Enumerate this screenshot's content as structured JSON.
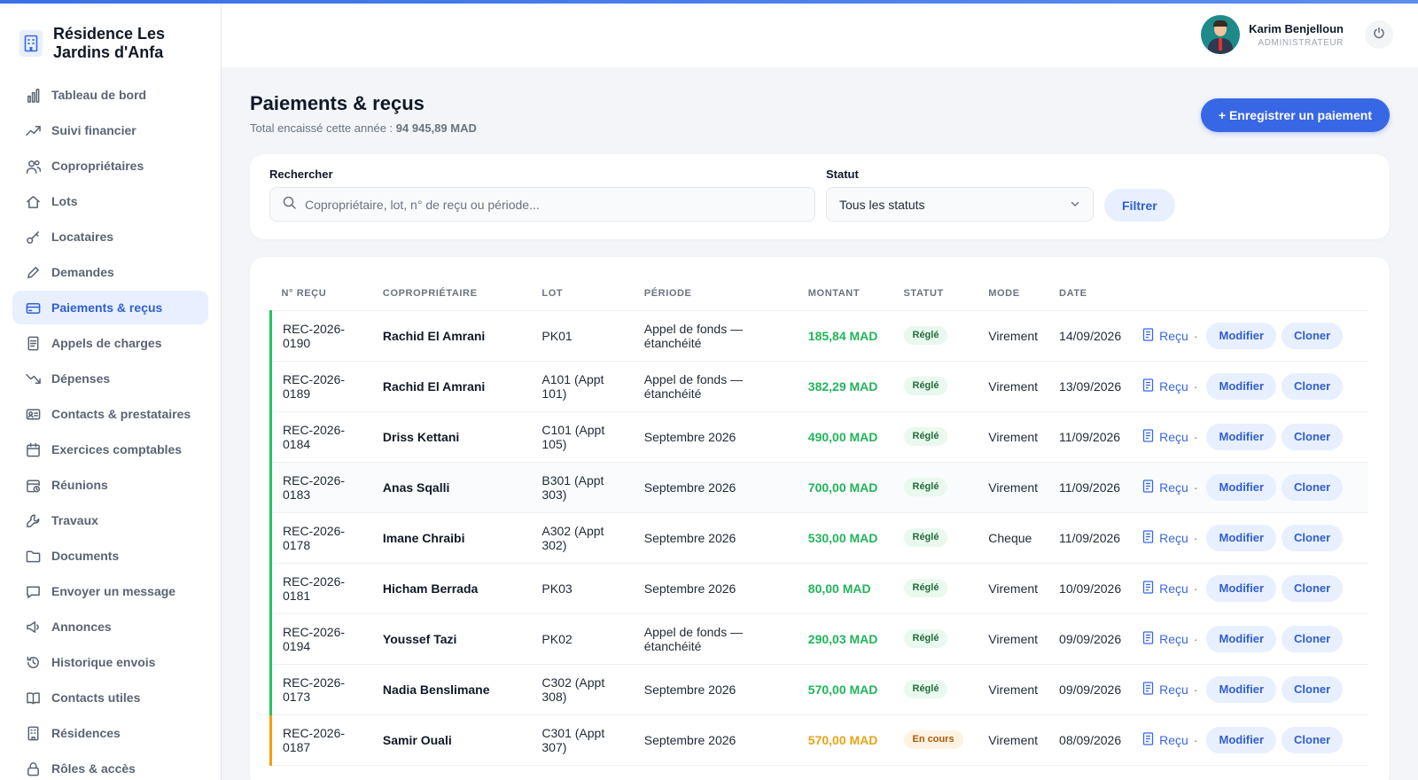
{
  "app": {
    "title": "Résidence Les Jardins d'Anfa"
  },
  "sidebar": {
    "items": [
      {
        "label": "Tableau de bord",
        "icon": "bar-chart-icon"
      },
      {
        "label": "Suivi financier",
        "icon": "trending-up-icon"
      },
      {
        "label": "Copropriétaires",
        "icon": "users-icon"
      },
      {
        "label": "Lots",
        "icon": "home-icon"
      },
      {
        "label": "Locataires",
        "icon": "key-icon"
      },
      {
        "label": "Demandes",
        "icon": "pencil-icon"
      },
      {
        "label": "Paiements & reçus",
        "icon": "credit-card-icon",
        "active": true
      },
      {
        "label": "Appels de charges",
        "icon": "document-icon"
      },
      {
        "label": "Dépenses",
        "icon": "trending-down-icon"
      },
      {
        "label": "Contacts & prestataires",
        "icon": "contact-card-icon"
      },
      {
        "label": "Exercices comptables",
        "icon": "calendar-icon"
      },
      {
        "label": "Réunions",
        "icon": "calendar-clock-icon"
      },
      {
        "label": "Travaux",
        "icon": "wrench-icon"
      },
      {
        "label": "Documents",
        "icon": "folder-icon"
      },
      {
        "label": "Envoyer un message",
        "icon": "message-icon"
      },
      {
        "label": "Annonces",
        "icon": "megaphone-icon"
      },
      {
        "label": "Historique envois",
        "icon": "history-icon"
      },
      {
        "label": "Contacts utiles",
        "icon": "book-icon"
      },
      {
        "label": "Résidences",
        "icon": "building-icon"
      },
      {
        "label": "Rôles & accès",
        "icon": "lock-icon"
      }
    ]
  },
  "header": {
    "user_name": "Karim Benjelloun",
    "user_role": "ADMINISTRATEUR"
  },
  "page": {
    "title": "Paiements & reçus",
    "subtitle_prefix": "Total encaissé cette année :",
    "total": "94 945,89 MAD",
    "primary_button": "+ Enregistrer un paiement"
  },
  "filters": {
    "search_label": "Rechercher",
    "search_placeholder": "Copropriétaire, lot, n° de reçu ou période...",
    "status_label": "Statut",
    "status_value": "Tous les statuts",
    "filter_button": "Filtrer"
  },
  "table": {
    "columns": [
      "N° REÇU",
      "COPROPRIÉTAIRE",
      "LOT",
      "PÉRIODE",
      "MONTANT",
      "STATUT",
      "MODE",
      "DATE"
    ],
    "receipt_label": "Reçu",
    "separator": "·",
    "edit_label": "Modifier",
    "clone_label": "Cloner",
    "rows": [
      {
        "receipt": "REC-2026-0190",
        "owner": "Rachid El Amrani",
        "lot": "PK01",
        "period": "Appel de fonds — étanchéité",
        "amount": "185,84 MAD",
        "status": "Réglé",
        "mode": "Virement",
        "date": "14/09/2026"
      },
      {
        "receipt": "REC-2026-0189",
        "owner": "Rachid El Amrani",
        "lot": "A101 (Appt 101)",
        "period": "Appel de fonds — étanchéité",
        "amount": "382,29 MAD",
        "status": "Réglé",
        "mode": "Virement",
        "date": "13/09/2026"
      },
      {
        "receipt": "REC-2026-0184",
        "owner": "Driss Kettani",
        "lot": "C101 (Appt 105)",
        "period": "Septembre 2026",
        "amount": "490,00 MAD",
        "status": "Réglé",
        "mode": "Virement",
        "date": "11/09/2026"
      },
      {
        "receipt": "REC-2026-0183",
        "owner": "Anas Sqalli",
        "lot": "B301 (Appt 303)",
        "period": "Septembre 2026",
        "amount": "700,00 MAD",
        "status": "Réglé",
        "mode": "Virement",
        "date": "11/09/2026"
      },
      {
        "receipt": "REC-2026-0178",
        "owner": "Imane Chraibi",
        "lot": "A302 (Appt 302)",
        "period": "Septembre 2026",
        "amount": "530,00 MAD",
        "status": "Réglé",
        "mode": "Cheque",
        "date": "11/09/2026"
      },
      {
        "receipt": "REC-2026-0181",
        "owner": "Hicham Berrada",
        "lot": "PK03",
        "period": "Septembre 2026",
        "amount": "80,00 MAD",
        "status": "Réglé",
        "mode": "Virement",
        "date": "10/09/2026"
      },
      {
        "receipt": "REC-2026-0194",
        "owner": "Youssef Tazi",
        "lot": "PK02",
        "period": "Appel de fonds — étanchéité",
        "amount": "290,03 MAD",
        "status": "Réglé",
        "mode": "Virement",
        "date": "09/09/2026"
      },
      {
        "receipt": "REC-2026-0173",
        "owner": "Nadia Benslimane",
        "lot": "C302 (Appt 308)",
        "period": "Septembre 2026",
        "amount": "570,00 MAD",
        "status": "Réglé",
        "mode": "Virement",
        "date": "09/09/2026"
      },
      {
        "receipt": "REC-2026-0187",
        "owner": "Samir Ouali",
        "lot": "C301 (Appt 307)",
        "period": "Septembre 2026",
        "amount": "570,00 MAD",
        "status": "En cours",
        "mode": "Virement",
        "date": "08/09/2026"
      }
    ]
  },
  "colors": {
    "accent": "#3867e6",
    "paid": "#22b55b",
    "pending": "#e6a417"
  }
}
